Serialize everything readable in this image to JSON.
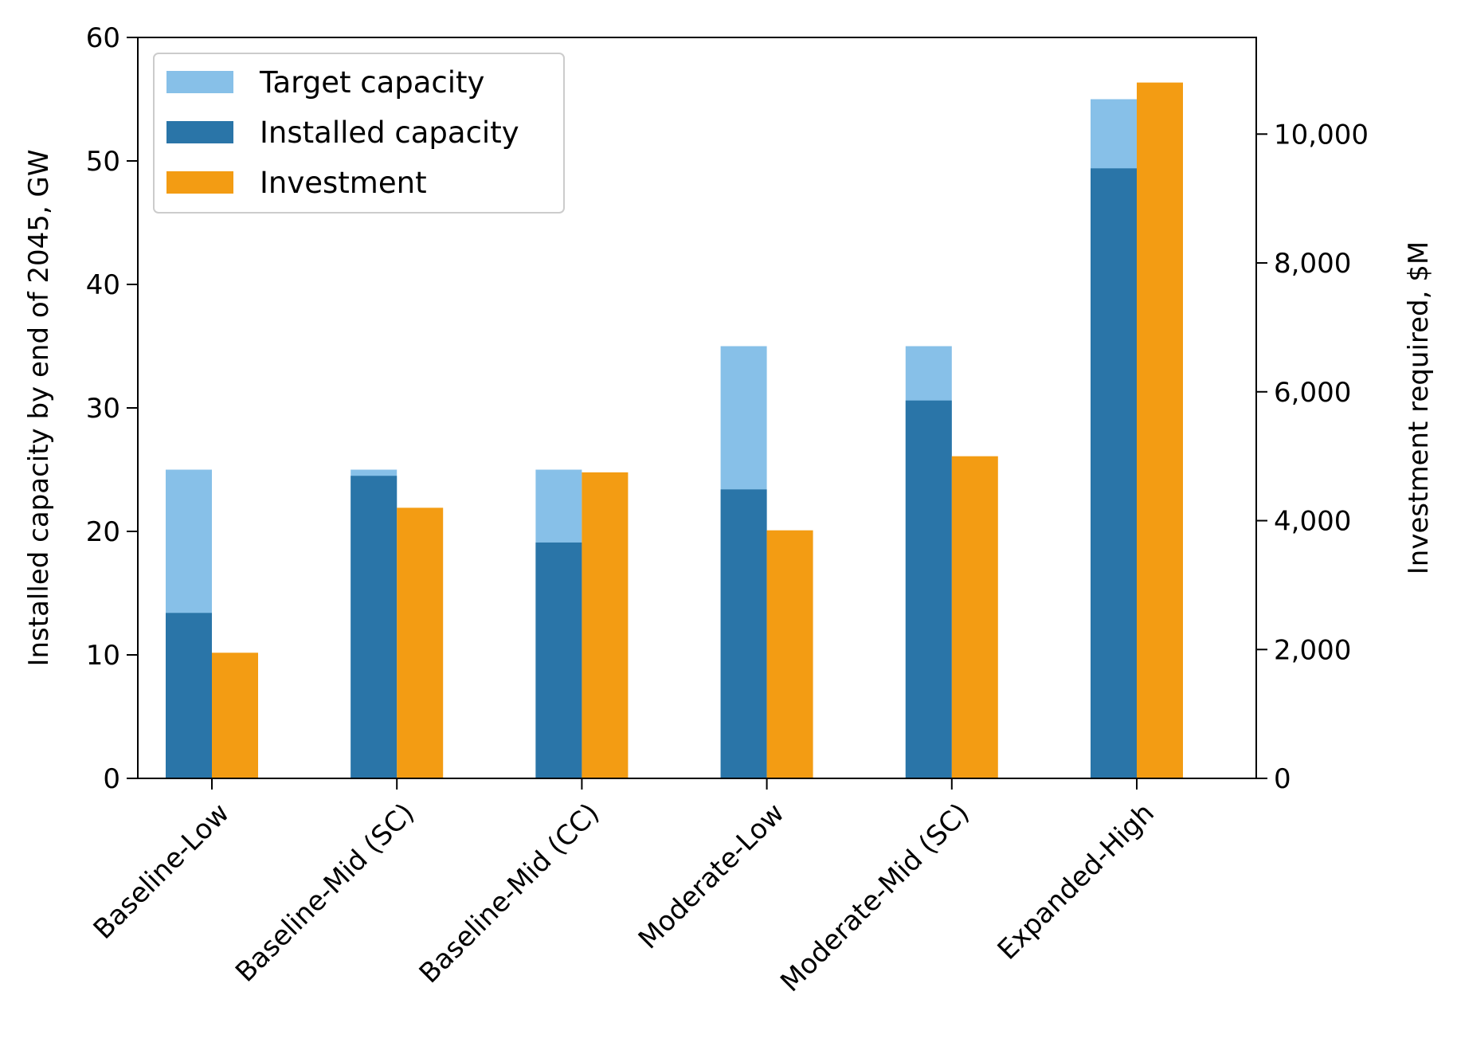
{
  "chart_data": {
    "type": "bar",
    "categories": [
      "Baseline-Low",
      "Baseline-Mid (SC)",
      "Baseline-Mid (CC)",
      "Moderate-Low",
      "Moderate-Mid (SC)",
      "Expanded-High"
    ],
    "series": [
      {
        "name": "Target capacity",
        "axis": "left",
        "values": [
          25,
          25,
          25,
          35,
          35,
          55
        ]
      },
      {
        "name": "Installed capacity",
        "axis": "left",
        "values": [
          13.4,
          24.5,
          19.1,
          23.4,
          30.6,
          49.4
        ]
      },
      {
        "name": "Investment",
        "axis": "right",
        "values": [
          1950,
          4200,
          4750,
          3850,
          5000,
          10800
        ]
      }
    ],
    "ylabel": "Installed capacity by end of 2045, GW",
    "ylabel_right": "Investment required, $M",
    "ylim": [
      0,
      60
    ],
    "ylim_right": [
      0,
      11500
    ],
    "yticks": [
      0,
      10,
      20,
      30,
      40,
      50,
      60
    ],
    "yticks_right": [
      0,
      2000,
      4000,
      6000,
      8000,
      10000
    ],
    "yticks_right_labels": [
      "0",
      "2,000",
      "4,000",
      "6,000",
      "8,000",
      "10,000"
    ],
    "legend_position": "top-left",
    "grid": false,
    "colors": {
      "target": "#87c0e8",
      "installed": "#2a75a8",
      "investment": "#f39c13"
    }
  }
}
